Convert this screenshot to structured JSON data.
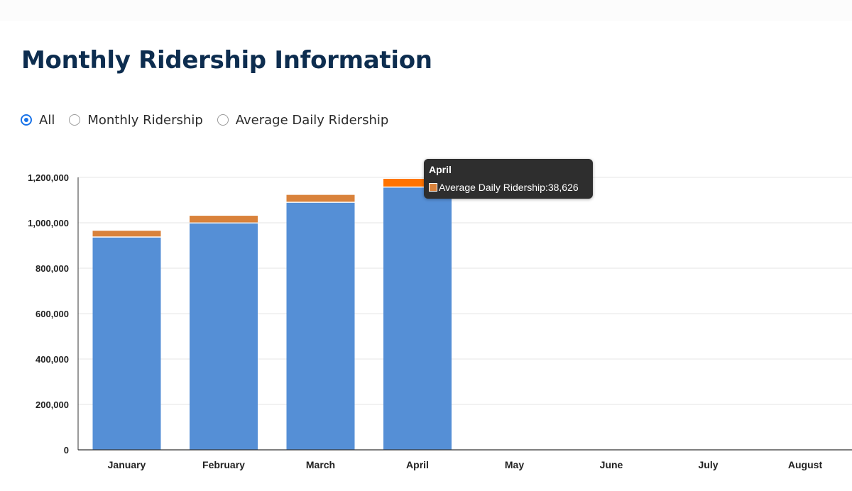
{
  "page": {
    "title": "Monthly Ridership Information"
  },
  "filters": {
    "options": [
      {
        "label": "All",
        "checked": true
      },
      {
        "label": "Monthly Ridership",
        "checked": false
      },
      {
        "label": "Average Daily Ridership",
        "checked": false
      }
    ]
  },
  "tooltip": {
    "title": "April",
    "series_label": "Average Daily Ridership",
    "value_text": "38,626",
    "swatch_color": "#d9823b"
  },
  "chart_data": {
    "type": "bar",
    "stacked": true,
    "categories": [
      "January",
      "February",
      "March",
      "April",
      "May",
      "June",
      "July",
      "August"
    ],
    "series": [
      {
        "name": "Monthly Ridership",
        "color": "#558fd6",
        "values": [
          935000,
          997000,
          1088000,
          1155000,
          null,
          null,
          null,
          null
        ]
      },
      {
        "name": "Average Daily Ridership",
        "color": "#d9823b",
        "values": [
          30000,
          34000,
          35000,
          38626,
          null,
          null,
          null,
          null
        ]
      }
    ],
    "highlight": {
      "category": "April",
      "series": "Average Daily Ridership",
      "color": "#ff7300"
    },
    "ylim": [
      0,
      1200000
    ],
    "yticks": [
      0,
      200000,
      400000,
      600000,
      800000,
      1000000,
      1200000
    ],
    "ytick_labels": [
      "0",
      "200,000",
      "400,000",
      "600,000",
      "800,000",
      "1,000,000",
      "1,200,000"
    ],
    "grid": true,
    "title": "",
    "xlabel": "",
    "ylabel": ""
  }
}
